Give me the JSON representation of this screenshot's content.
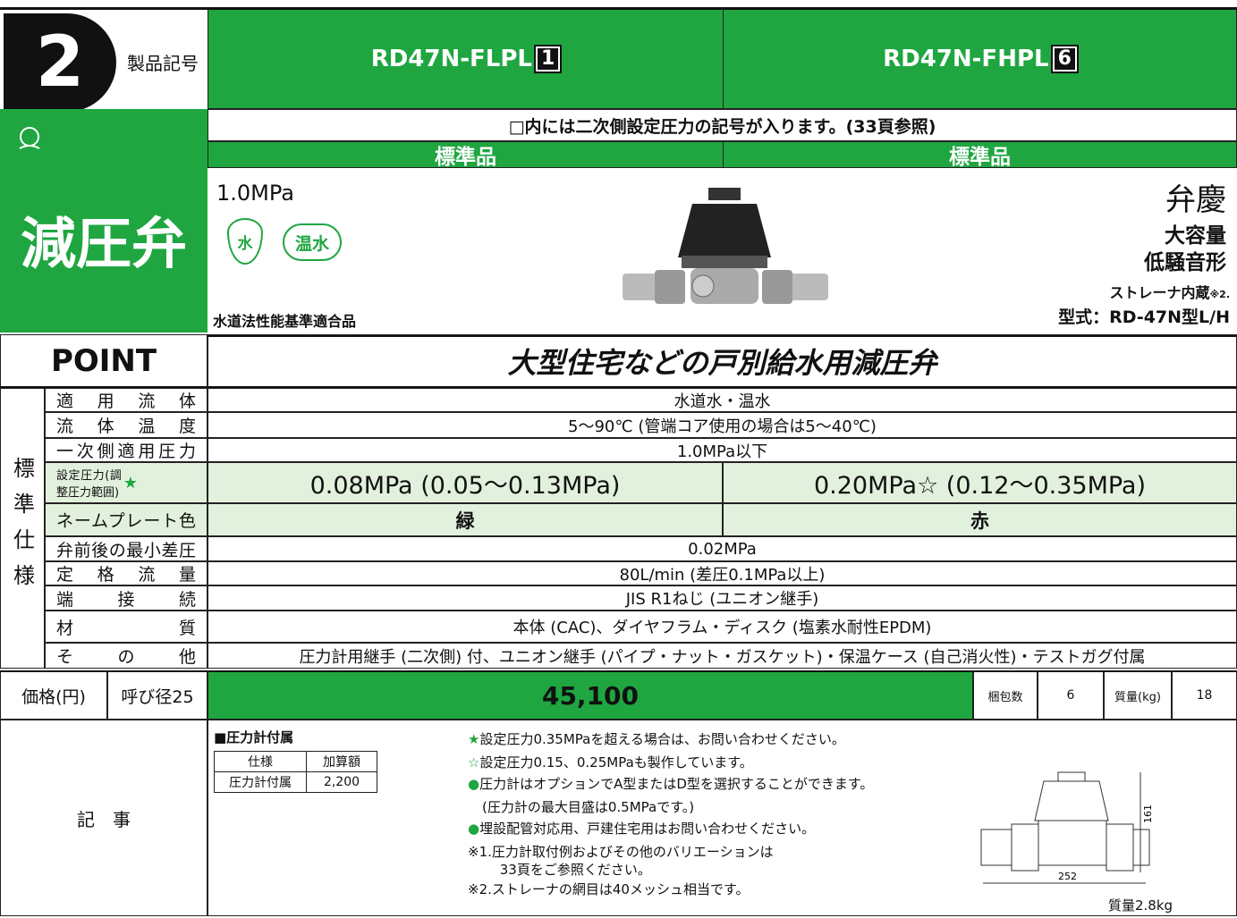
{
  "header": {
    "number": "2",
    "label": "製品記号",
    "models": [
      "RD47N-FLPL",
      "RD47N-FHPL"
    ],
    "model_codes": [
      "1",
      "6"
    ]
  },
  "note": "□内には二次側設定圧力の記号が入ります。(33頁参照)",
  "grades": [
    "標準品",
    "標準品"
  ],
  "category": "減圧弁",
  "product": {
    "pressure": "1.0MPa",
    "badges": [
      "水",
      "温水"
    ],
    "certification": "水道法性能基準適合品",
    "brand": "弁慶",
    "features": [
      "大容量",
      "低騒音形"
    ],
    "strainer": "ストレーナ内蔵",
    "strainer_ref": "※2.",
    "model_type": "型式：RD-47N型L/H"
  },
  "point": {
    "label": "POINT",
    "text": "大型住宅などの戸別給水用減圧弁"
  },
  "spec": {
    "label": "標準仕様",
    "rows": [
      {
        "name": "適用流体",
        "values": [
          "水道水・温水"
        ]
      },
      {
        "name": "流体温度",
        "values": [
          "5〜90℃ (管端コア使用の場合は5〜40℃)"
        ]
      },
      {
        "name": "一次側適用圧力",
        "values": [
          "1.0MPa以下"
        ]
      },
      {
        "name": "設定圧力(調整圧力範囲)",
        "mark": "★",
        "values": [
          "0.08MPa (0.05〜0.13MPa)",
          "0.20MPa☆ (0.12〜0.35MPa)"
        ]
      },
      {
        "name": "ネームプレート色",
        "values": [
          "緑",
          "赤"
        ]
      },
      {
        "name": "弁前後の最小差圧",
        "values": [
          "0.02MPa"
        ]
      },
      {
        "name": "定格流量",
        "values": [
          "80L/min (差圧0.1MPa以上)"
        ]
      },
      {
        "name": "端接続",
        "values": [
          "JIS R1ねじ (ユニオン継手)"
        ]
      },
      {
        "name": "材質",
        "values": [
          "本体 (CAC)、ダイヤフラム・ディスク (塩素水耐性EPDM)"
        ]
      },
      {
        "name": "その他",
        "values": [
          "圧力計用継手 (二次側) 付、ユニオン継手 (パイプ・ナット・ガスケット)・保温ケース (自己消火性)・テストガグ付属"
        ]
      }
    ]
  },
  "price": {
    "label": "価格(円)",
    "size": "呼び径25",
    "price": "45,100",
    "pack_label": "梱包数",
    "pack": 6,
    "weight_label": "質量(kg)",
    "weight": 18
  },
  "notes": {
    "label": "記　事",
    "gauge_title": "■圧力計付属",
    "gauge_header": [
      "仕様",
      "加算額"
    ],
    "gauge_row": [
      "圧力計付属",
      "2,200"
    ],
    "items": [
      {
        "mark": "★",
        "text": "設定圧力0.35MPaを超える場合は、お問い合わせください。"
      },
      {
        "mark": "☆",
        "text": "設定圧力0.15、0.25MPaも製作しています。"
      },
      {
        "mark": "●",
        "text": "圧力計はオプションでA型またはD型を選択することができます。"
      },
      {
        "text": "(圧力計の最大目盛は0.5MPaです。)"
      },
      {
        "mark": "●",
        "text": "埋設配管対応用、戸建住宅用はお問い合わせください。"
      },
      {
        "text": "※1.圧力計取付例およびその他のバリエーションは"
      },
      {
        "text": "　 33頁をご参照ください。"
      },
      {
        "text": "※2.ストレーナの網目は40メッシュ相当です。"
      }
    ],
    "drawing": {
      "height": "161",
      "width": "252",
      "weight": "質量2.8kg"
    }
  }
}
